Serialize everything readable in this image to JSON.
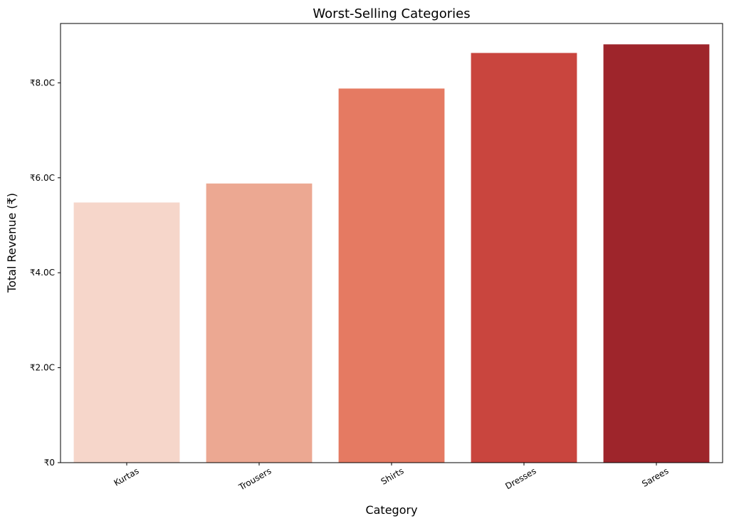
{
  "chart_data": {
    "type": "bar",
    "title": "Worst-Selling Categories",
    "xlabel": "Category",
    "ylabel": "Total Revenue (₹)",
    "categories": [
      "Kurtas",
      "Trousers",
      "Shirts",
      "Dresses",
      "Sarees"
    ],
    "values": [
      5.48,
      5.88,
      7.88,
      8.63,
      8.81
    ],
    "value_unit": "C",
    "colors": [
      "#f6d6ca",
      "#eca892",
      "#e57a62",
      "#c9453e",
      "#9e252b"
    ],
    "ylim": [
      0,
      9.25
    ],
    "yticks": [
      {
        "value": 0,
        "label": "₹0"
      },
      {
        "value": 2,
        "label": "₹2.0C"
      },
      {
        "value": 4,
        "label": "₹4.0C"
      },
      {
        "value": 6,
        "label": "₹6.0C"
      },
      {
        "value": 8,
        "label": "₹8.0C"
      }
    ],
    "xtick_rotation_deg": -30,
    "grid": false,
    "legend": "none"
  }
}
